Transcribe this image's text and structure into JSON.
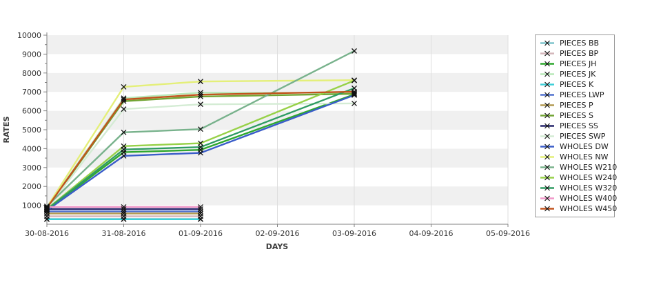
{
  "window": {
    "background": "#ffffff"
  },
  "chart_data": {
    "type": "line",
    "title": "",
    "xlabel": "DAYS",
    "ylabel": "RATES",
    "x_tick_labels": [
      "30-08-2016",
      "31-08-2016",
      "01-09-2016",
      "02-09-2016",
      "03-09-2016",
      "04-09-2016",
      "05-09-2016"
    ],
    "ylim": [
      0,
      10000
    ],
    "y_major_step": 1000,
    "y_minor_step": 500,
    "grid": "horizontal-bands",
    "band_colors": [
      "#ffffff",
      "#f0f0f0"
    ],
    "legend_position": "right",
    "marker": {
      "shape": "x",
      "color": "#111111",
      "size": 7
    },
    "series": [
      {
        "name": "PIECES BB",
        "color": "#7fc4cc",
        "x": [
          0,
          1,
          2
        ],
        "values": [
          275,
          275,
          275
        ]
      },
      {
        "name": "PIECES BP",
        "color": "#d4b6ba",
        "x": [
          0,
          1,
          2
        ],
        "values": [
          420,
          420,
          420
        ]
      },
      {
        "name": "PIECES JH",
        "color": "#2fa82f",
        "x": [
          0,
          1,
          2,
          4
        ],
        "values": [
          760,
          3810,
          3935,
          6865
        ]
      },
      {
        "name": "PIECES JK",
        "color": "#b9e8b9",
        "x": [
          0,
          1,
          2,
          4
        ],
        "values": [
          880,
          6670,
          6965,
          6940
        ]
      },
      {
        "name": "PIECES K",
        "color": "#3ecfd8",
        "x": [
          0,
          1,
          2
        ],
        "values": [
          265,
          265,
          265
        ]
      },
      {
        "name": "PIECES LWP",
        "color": "#5272cf",
        "x": [
          0,
          1,
          2
        ],
        "values": [
          680,
          680,
          680
        ]
      },
      {
        "name": "PIECES P",
        "color": "#b29a52",
        "x": [
          0,
          1,
          2
        ],
        "values": [
          570,
          570,
          570
        ]
      },
      {
        "name": "PIECES S",
        "color": "#71a433",
        "x": [
          0,
          1,
          2,
          4
        ],
        "values": [
          840,
          6510,
          6755,
          6900
        ]
      },
      {
        "name": "PIECES SS",
        "color": "#26266b",
        "x": [
          0,
          1,
          2
        ],
        "values": [
          805,
          805,
          805
        ]
      },
      {
        "name": "PIECES SWP",
        "color": "#d4ecd4",
        "x": [
          0,
          1,
          2,
          4
        ],
        "values": [
          820,
          6090,
          6345,
          6390
        ]
      },
      {
        "name": "WHOLES DW",
        "color": "#3a5dc9",
        "x": [
          0,
          1,
          2,
          4
        ],
        "values": [
          730,
          3615,
          3775,
          6830
        ]
      },
      {
        "name": "WHOLES NW",
        "color": "#e4ef79",
        "x": [
          0,
          1,
          2,
          4
        ],
        "values": [
          900,
          7265,
          7550,
          7620
        ]
      },
      {
        "name": "WHOLES W210",
        "color": "#78b28c",
        "x": [
          0,
          1,
          2,
          4
        ],
        "values": [
          950,
          4860,
          5030,
          9165
        ]
      },
      {
        "name": "WHOLES W240",
        "color": "#97d148",
        "x": [
          0,
          1,
          2,
          4
        ],
        "values": [
          800,
          4130,
          4285,
          7600
        ]
      },
      {
        "name": "WHOLES W320",
        "color": "#2f9c63",
        "x": [
          0,
          1,
          2,
          4
        ],
        "values": [
          780,
          3955,
          4080,
          7195
        ]
      },
      {
        "name": "WHOLES W400",
        "color": "#f096c8",
        "x": [
          0,
          1,
          2
        ],
        "values": [
          915,
          915,
          915
        ]
      },
      {
        "name": "WHOLES W450",
        "color": "#c2531d",
        "x": [
          0,
          1,
          2,
          4
        ],
        "values": [
          860,
          6600,
          6855,
          7010
        ]
      }
    ],
    "axis_color": "#808080",
    "gridline_color": "#dedede",
    "tick_label_color": "#333333",
    "axis_title_color": "#3c3c3c"
  }
}
